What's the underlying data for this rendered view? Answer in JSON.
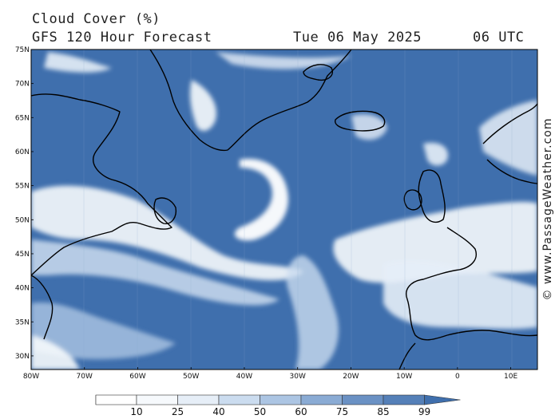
{
  "header": {
    "title": "Cloud Cover (%)",
    "subtitle": "GFS 120 Hour Forecast",
    "date": "Tue 06 May 2025",
    "time": "06 UTC"
  },
  "credit": "© www.PassageWeather.com",
  "map": {
    "lat_range": [
      28,
      75
    ],
    "lon_range": [
      -80,
      15
    ],
    "lat_ticks": [
      "75N",
      "70N",
      "65N",
      "60N",
      "55N",
      "50N",
      "45N",
      "40N",
      "35N",
      "30N"
    ],
    "lon_ticks": [
      "80W",
      "70W",
      "60W",
      "50W",
      "40W",
      "30W",
      "20W",
      "10W",
      "0",
      "10E"
    ]
  },
  "legend": {
    "values": [
      "10",
      "25",
      "40",
      "50",
      "60",
      "75",
      "85",
      "99"
    ],
    "colors": [
      "#f6f9fc",
      "#e6eef7",
      "#cbdcef",
      "#acc5e3",
      "#8aabd4",
      "#6a91c4",
      "#5580b8",
      "#3f6fad"
    ]
  },
  "colors": {
    "ocean_cloud": "#3f6fad",
    "coast": "#000000"
  }
}
